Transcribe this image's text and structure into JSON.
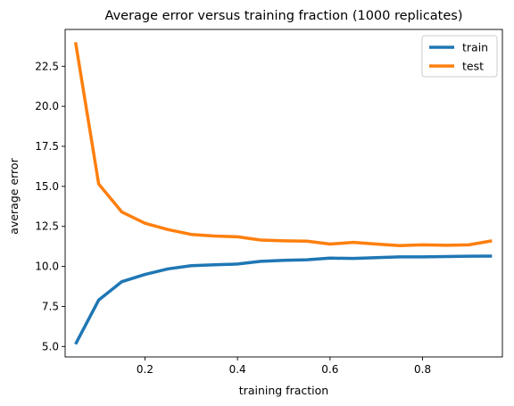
{
  "chart_data": {
    "type": "line",
    "title": "Average error versus training fraction (1000 replicates)",
    "xlabel": "training fraction",
    "ylabel": "average error",
    "xlim": [
      0.0275,
      0.9725
    ],
    "ylim": [
      4.35,
      24.8
    ],
    "x": [
      0.05,
      0.1,
      0.15,
      0.2,
      0.25,
      0.3,
      0.35,
      0.4,
      0.45,
      0.5,
      0.55,
      0.6,
      0.65,
      0.7,
      0.75,
      0.8,
      0.85,
      0.9,
      0.95
    ],
    "x_ticks": [
      {
        "value": 0.2,
        "label": "0.2"
      },
      {
        "value": 0.4,
        "label": "0.4"
      },
      {
        "value": 0.6,
        "label": "0.6"
      },
      {
        "value": 0.8,
        "label": "0.8"
      }
    ],
    "y_ticks": [
      {
        "value": 5.0,
        "label": "5.0"
      },
      {
        "value": 7.5,
        "label": "7.5"
      },
      {
        "value": 10.0,
        "label": "10.0"
      },
      {
        "value": 12.5,
        "label": "12.5"
      },
      {
        "value": 15.0,
        "label": "15.0"
      },
      {
        "value": 17.5,
        "label": "17.5"
      },
      {
        "value": 20.0,
        "label": "20.0"
      },
      {
        "value": 22.5,
        "label": "22.5"
      }
    ],
    "series": [
      {
        "name": "train",
        "color": "#1f77b4",
        "values": [
          5.15,
          7.9,
          9.05,
          9.5,
          9.85,
          10.05,
          10.1,
          10.15,
          10.32,
          10.38,
          10.42,
          10.52,
          10.5,
          10.55,
          10.6,
          10.6,
          10.62,
          10.64,
          10.65
        ]
      },
      {
        "name": "test",
        "color": "#ff7f0e",
        "values": [
          24.0,
          15.15,
          13.4,
          12.7,
          12.3,
          12.0,
          11.9,
          11.85,
          11.65,
          11.6,
          11.58,
          11.4,
          11.5,
          11.4,
          11.3,
          11.35,
          11.32,
          11.35,
          11.6
        ]
      }
    ],
    "grid": false,
    "legend": "top-right"
  }
}
